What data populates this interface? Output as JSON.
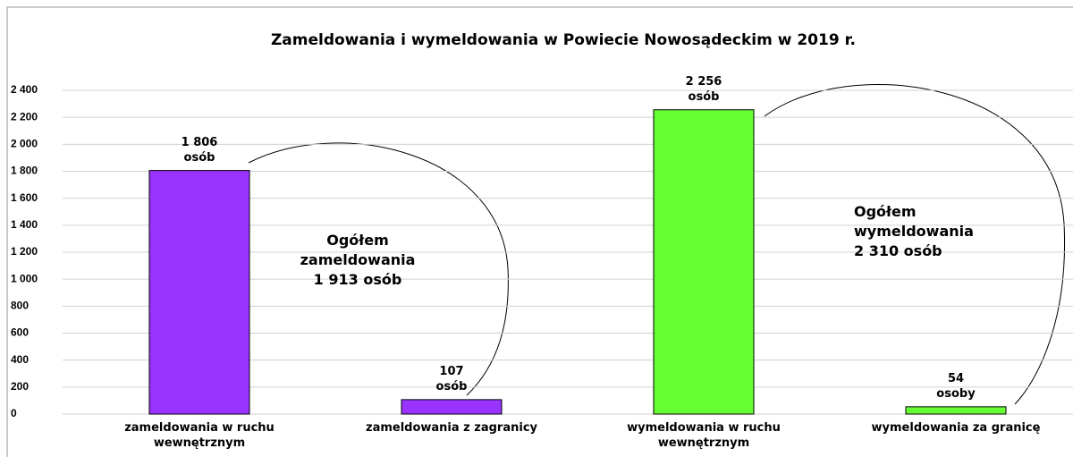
{
  "chart_data": {
    "type": "bar",
    "title": "Zameldowania i wymeldowania w Powiecie Nowosądeckim w 2019 r.",
    "categories": [
      "zameldowania w ruchu\nwewnętrznym",
      "zameldowania z zagranicy",
      "wymeldowania w ruchu\nwewnętrznym",
      "wymeldowania za granicę"
    ],
    "values": [
      1806,
      107,
      2256,
      54
    ],
    "value_labels": [
      "1 806\nosób",
      "107\nosób",
      "2 256\nosób",
      "54\nosoby"
    ],
    "colors": [
      "#9933ff",
      "#9933ff",
      "#66ff33",
      "#66ff33"
    ],
    "ylim": [
      0,
      2400
    ],
    "yticks": [
      0,
      200,
      400,
      600,
      800,
      {
        "value": 1000,
        "label": "1 000"
      },
      {
        "value": 1200,
        "label": "1 200"
      },
      {
        "value": 1400,
        "label": "1 400"
      },
      {
        "value": 1600,
        "label": "1 600"
      },
      {
        "value": 1800,
        "label": "1 800"
      },
      {
        "value": 2000,
        "label": "2 000"
      },
      {
        "value": 2200,
        "label": "2 200"
      },
      {
        "value": 2400,
        "label": "2 400"
      }
    ],
    "grid": true,
    "annotations": [
      "Ogółem\nzameldowania\n1 913 osób",
      "Ogółem\nwymeldowania\n2 310 osób"
    ]
  }
}
